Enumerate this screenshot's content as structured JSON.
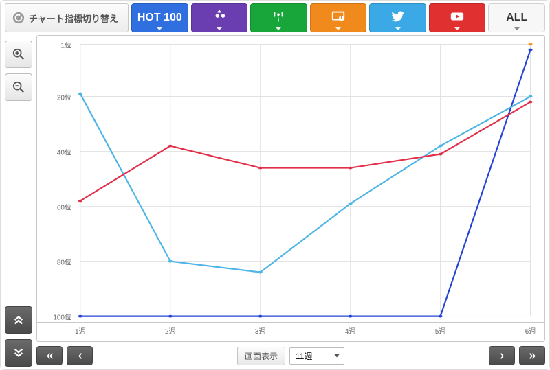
{
  "header": {
    "switch_label": "チャート指標切り替え",
    "tabs": [
      {
        "name": "hot100",
        "label": "HOT 100",
        "bg": "#2f6fe0",
        "icon": null
      },
      {
        "name": "download",
        "label": "",
        "bg": "#6a3db0",
        "icon": "download-people"
      },
      {
        "name": "radio",
        "label": "",
        "bg": "#18a53a",
        "icon": "antenna"
      },
      {
        "name": "tv",
        "label": "",
        "bg": "#f08a1d",
        "icon": "screen"
      },
      {
        "name": "twitter",
        "label": "",
        "bg": "#3aa9e6",
        "icon": "twitter"
      },
      {
        "name": "youtube",
        "label": "",
        "bg": "#e03030",
        "icon": "youtube"
      },
      {
        "name": "all",
        "label": "ALL",
        "bg": "#f7f7f7",
        "icon": null
      }
    ]
  },
  "chart": {
    "type": "line",
    "background_color": "#ffffff",
    "grid_color": "#e1e1e1",
    "border_color": "#c8c8c8",
    "yaxis": {
      "ticks": [
        1,
        20,
        40,
        60,
        80,
        100
      ],
      "suffix": "位",
      "min": 1,
      "max": 100,
      "inverted": true
    },
    "xaxis": {
      "ticks": [
        1,
        2,
        3,
        4,
        5,
        6
      ],
      "suffix": "週"
    },
    "series": [
      {
        "name": "blue",
        "color": "#2544d6",
        "width": 2.2,
        "marker_r": 4.5,
        "values": [
          100,
          100,
          100,
          100,
          100,
          3
        ]
      },
      {
        "name": "lightblue",
        "color": "#4fb5e6",
        "width": 2.2,
        "marker_r": 4.5,
        "values": [
          19,
          80,
          84,
          59,
          38,
          20
        ]
      },
      {
        "name": "red",
        "color": "#e22f4a",
        "width": 2.2,
        "marker_r": 4.5,
        "values": [
          58,
          38,
          46,
          46,
          41,
          22
        ]
      },
      {
        "name": "orange",
        "color": "#f09a1d",
        "width": 0,
        "marker_r": 4.5,
        "values": [
          null,
          null,
          null,
          null,
          null,
          1
        ]
      }
    ]
  },
  "footer": {
    "display_label": "画面表示",
    "select_value": "11週"
  }
}
